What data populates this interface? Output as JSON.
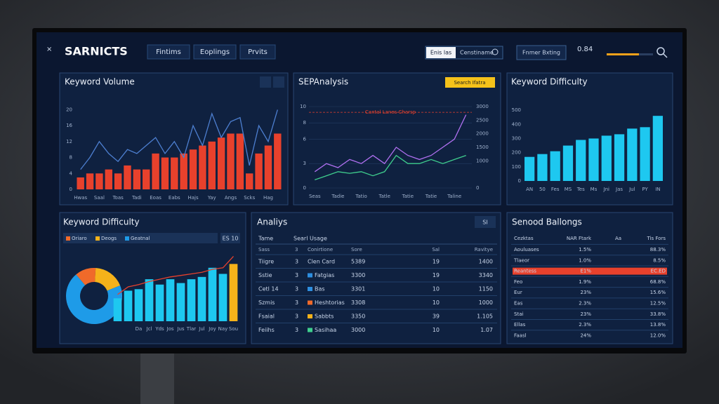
{
  "header": {
    "brand": "SARNICTS",
    "nav": [
      "Fintims",
      "Eoplings",
      "Prvits"
    ],
    "search": [
      "Enis las",
      "Censtiname"
    ],
    "button": "Fnmer Bxting",
    "stat": "0.84"
  },
  "chart_data": [
    {
      "type": "bar",
      "title": "Keyword Volume",
      "categories": [
        "Hwas",
        null,
        "Saal",
        null,
        "Toas",
        null,
        "Tadi",
        null,
        "Eoas",
        null,
        "Eabs",
        null,
        "Hajs",
        null,
        "Yay",
        null,
        "Angs",
        null,
        "Scks",
        null,
        "Hag",
        null
      ],
      "series": [
        {
          "color": "#e8412c",
          "values": [
            3,
            4,
            4,
            5,
            4,
            6,
            5,
            5,
            9,
            8,
            8,
            9,
            10,
            11,
            12,
            13,
            14,
            14,
            4,
            9,
            11,
            14
          ]
        },
        {
          "type": "line",
          "color": "#4d7fd0",
          "values": [
            5,
            8,
            12,
            9,
            7,
            10,
            9,
            11,
            13,
            9,
            12,
            8,
            16,
            11,
            19,
            13,
            17,
            18,
            6,
            16,
            12,
            20
          ]
        }
      ],
      "ylim": [
        0,
        22
      ],
      "yticks": [
        0,
        4,
        8,
        12,
        16,
        20
      ],
      "grid": false
    },
    {
      "type": "line",
      "title": "SEPAnalysis",
      "badge": "Search Ifatra",
      "categories": [
        "Seas",
        null,
        "Tadie",
        null,
        "Tatio",
        null,
        "Tatle",
        null,
        "Tatie",
        null,
        "Tatie",
        null,
        "Taline",
        null
      ],
      "series": [
        {
          "color": "#b070f0",
          "values": [
            2,
            3,
            2.5,
            3.5,
            3,
            4,
            3,
            5,
            4,
            3.5,
            4,
            5,
            6,
            9
          ]
        },
        {
          "color": "#3fcf8e",
          "values": [
            1,
            1.5,
            2,
            1.8,
            2,
            1.5,
            2,
            4,
            3,
            3,
            3.5,
            3,
            3.5,
            4
          ]
        }
      ],
      "ylim": [
        0,
        10
      ],
      "yticks": [
        0,
        3,
        6,
        8,
        10
      ],
      "y2lim": [
        0,
        3000
      ],
      "y2ticks": [
        0,
        1000,
        1500,
        2000,
        2500,
        3000
      ],
      "grid": true,
      "annotation": {
        "text": "Cantal Lanes Charsp",
        "value": 9.3
      }
    },
    {
      "type": "bar",
      "title": "Keyword Difficulty",
      "categories": [
        "AN",
        "50",
        "Fes",
        "MS",
        "Tes",
        "Ms",
        "Jni",
        "Jas",
        "Jul",
        "PY",
        "IN"
      ],
      "series": [
        {
          "color": "#1ec8f0",
          "values": [
            170,
            190,
            210,
            250,
            290,
            300,
            320,
            330,
            370,
            380,
            460
          ]
        }
      ],
      "ylim": [
        0,
        560
      ],
      "yticks": [
        0,
        100,
        200,
        300,
        400,
        500
      ],
      "grid": false
    },
    {
      "type": "pie",
      "title": "Keyword Difficulty",
      "button": "ES 10",
      "categories": [
        "Oriaro",
        "Deogs",
        "Geatnal"
      ],
      "colors": [
        "#f06a2a",
        "#f5b21a",
        "#1e9be8"
      ],
      "values": [
        12,
        18,
        70
      ]
    },
    {
      "type": "bar",
      "categories": [
        null,
        null,
        "Da",
        "Jcl",
        "Yds",
        "Jos",
        "Jus",
        "Tlar",
        "Jul",
        "Joy",
        "Nay",
        "Sou"
      ],
      "series": [
        {
          "colors": [
            "#1ec8f0",
            "#1ec8f0",
            "#1ec8f0",
            "#1ec8f0",
            "#1ec8f0",
            "#1ec8f0",
            "#1ec8f0",
            "#1ec8f0",
            "#1ec8f0",
            "#1ec8f0",
            "#1ec8f0",
            "#f5b21a"
          ],
          "values": [
            30,
            40,
            42,
            55,
            48,
            55,
            50,
            55,
            58,
            70,
            62,
            75
          ]
        },
        {
          "type": "line",
          "color": "#e8412c",
          "values": [
            35,
            45,
            48,
            52,
            55,
            58,
            60,
            62,
            64,
            68,
            70,
            85
          ]
        }
      ],
      "ylim": [
        0,
        90
      ],
      "grid": false
    }
  ],
  "tables": [
    {
      "title": "Analiys",
      "button": "SI",
      "header_top": [
        "Tame",
        "Searl Usage"
      ],
      "columns": [
        "Sass",
        "3",
        "Conirtione",
        "Sore",
        "Sal",
        "Ravitye"
      ],
      "rows": [
        [
          "Tiigre",
          "3",
          "Clen Card",
          "5389",
          "19",
          "1400"
        ],
        [
          "Sstie",
          "3",
          "Fatgias",
          "3300",
          "19",
          "3340"
        ],
        [
          "Cetl 14",
          "3",
          "Bas",
          "3301",
          "10",
          "1150"
        ],
        [
          "Szmis",
          "3",
          "Heshtorias",
          "3308",
          "10",
          "1000"
        ],
        [
          "Fsaial",
          "3",
          "Sabbts",
          "3350",
          "39",
          "1.105"
        ],
        [
          "Feiihs",
          "3",
          "Sasihaa",
          "3000",
          "10",
          "1.07"
        ]
      ],
      "swatches": [
        null,
        "#2d8ee0",
        "#2d8ee0",
        "#f06a2a",
        "#f5b21a",
        "#3fcf8e"
      ]
    },
    {
      "title": "Senood Ballongs",
      "columns": [
        "Cezktas",
        "NAR Ftark",
        "Aa",
        "Tis Fors"
      ],
      "rows": [
        [
          "Aouluases",
          "1.5%",
          "",
          "88.3%"
        ],
        [
          "Tlaeor",
          "1.0%",
          "",
          "8.5%"
        ],
        [
          "Reantess",
          "E1%",
          "",
          "EC.ED"
        ],
        [
          "Feo",
          "1.9%",
          "",
          "68.8%"
        ],
        [
          "Eur",
          "23%",
          "",
          "15.6%"
        ],
        [
          "Eas",
          "2.3%",
          "",
          "12.5%"
        ],
        [
          "Stai",
          "23%",
          "",
          "33.8%"
        ],
        [
          "Ellas",
          "2.3%",
          "",
          "13.8%"
        ],
        [
          "Faasl",
          "24%",
          "",
          "12.0%"
        ]
      ],
      "highlight_row": 2
    }
  ]
}
